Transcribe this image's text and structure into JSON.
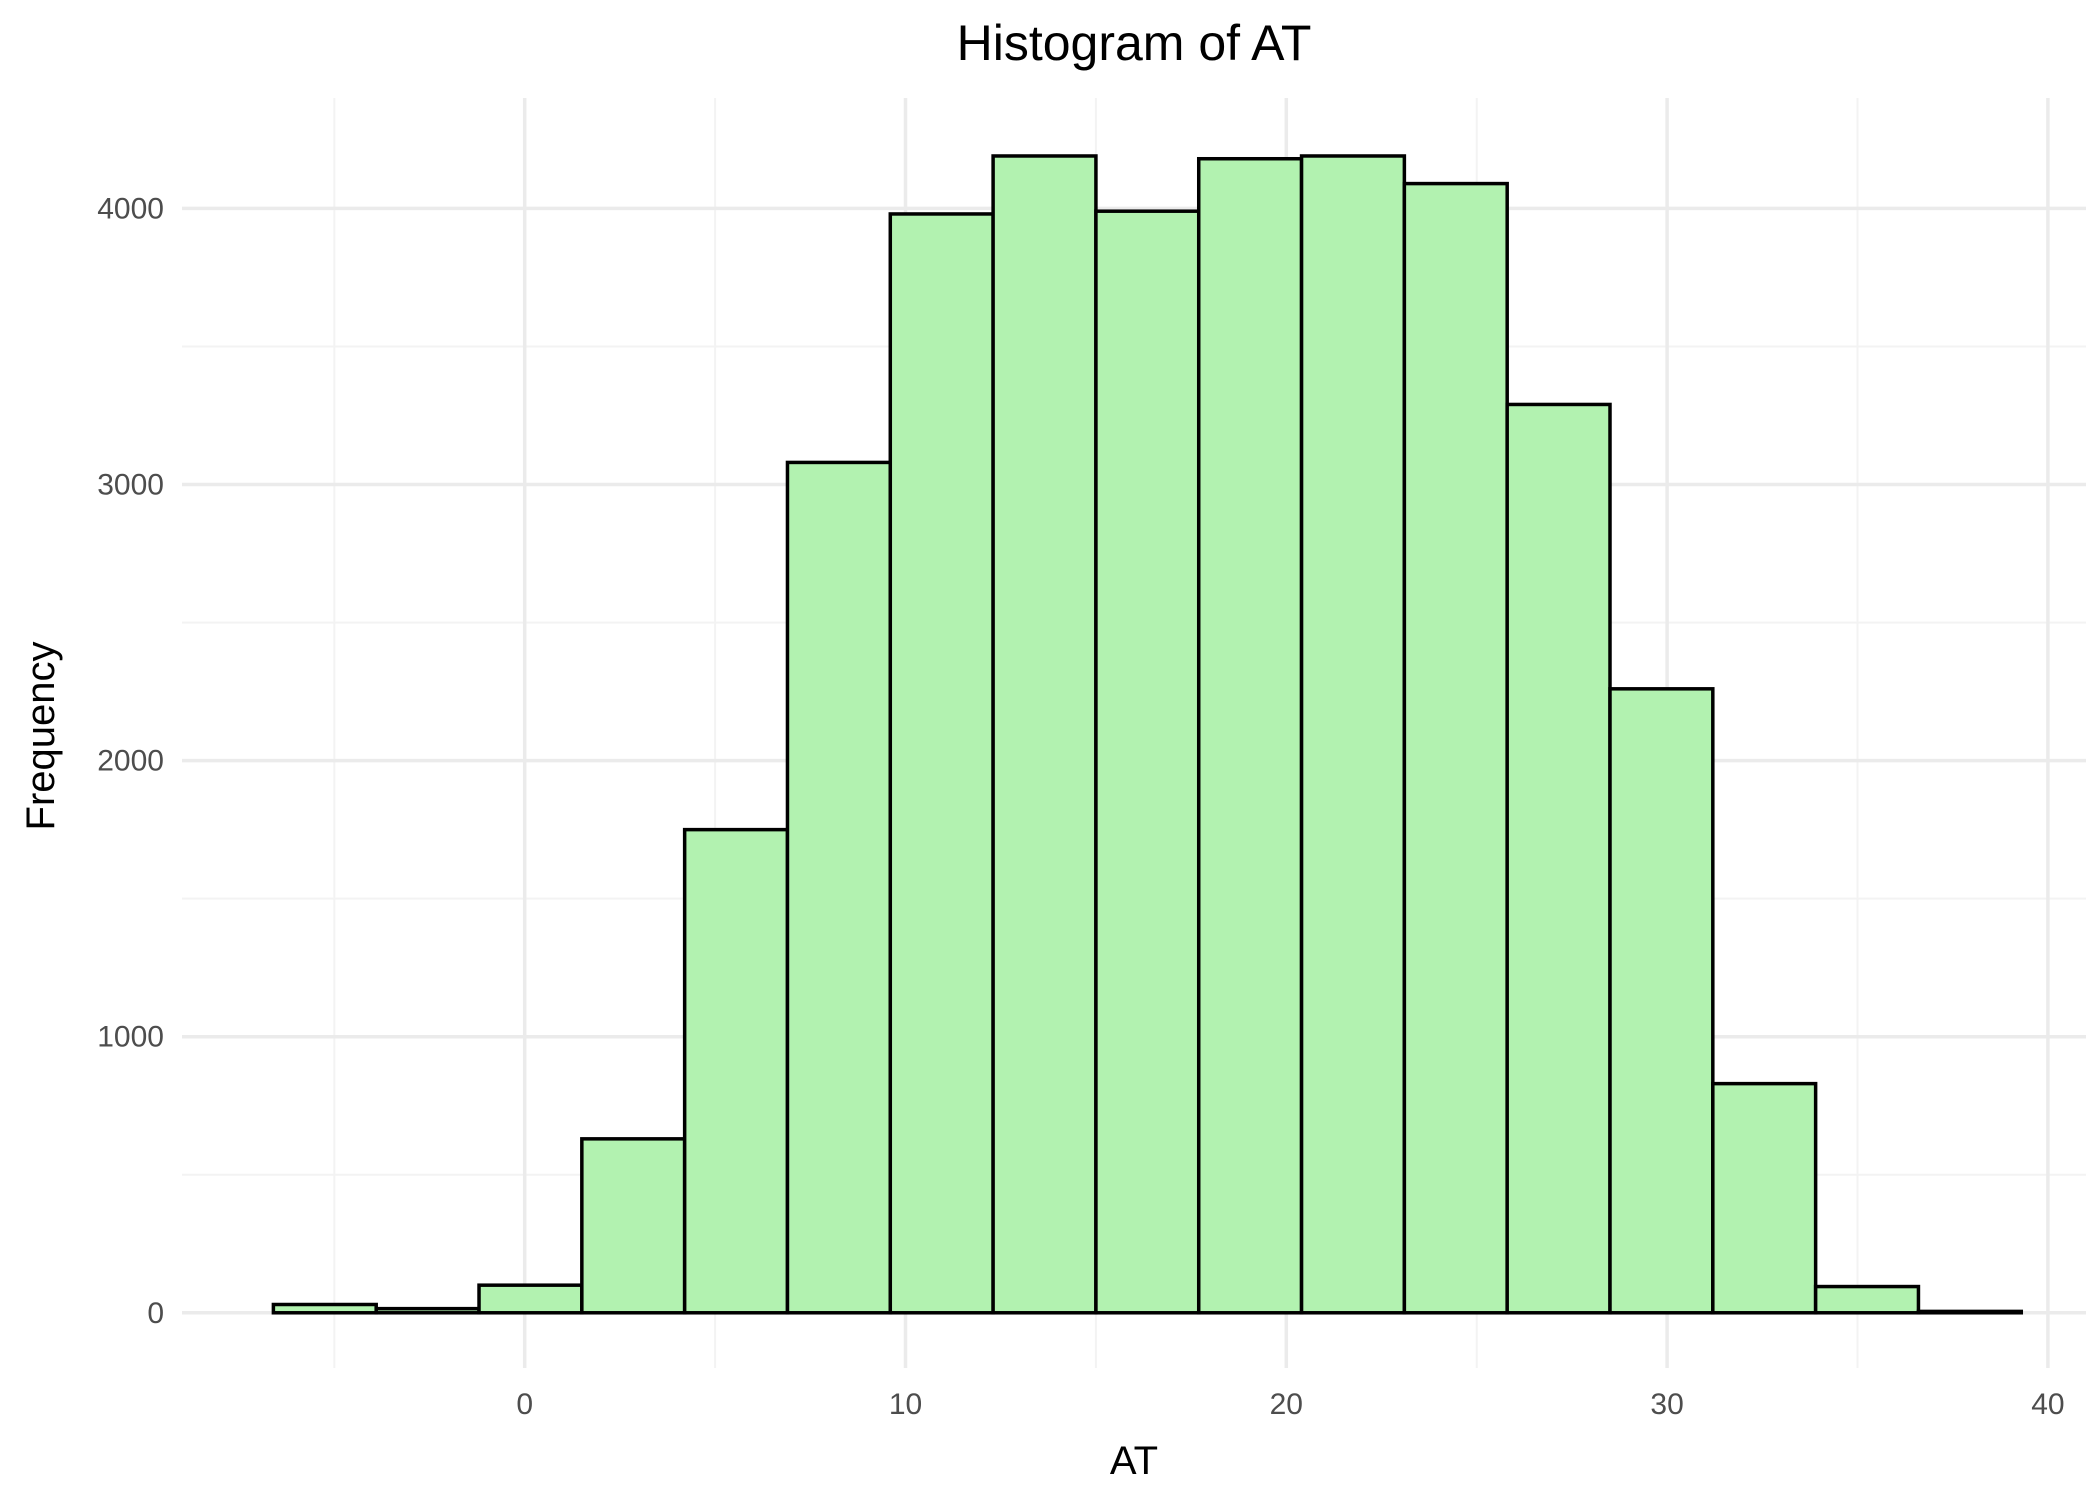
{
  "chart_data": {
    "type": "bar",
    "title": "Histogram of AT",
    "xlabel": "AT",
    "ylabel": "Frequency",
    "x_ticks": [
      0,
      10,
      20,
      30,
      40
    ],
    "y_ticks": [
      0,
      1000,
      2000,
      3000,
      4000
    ],
    "xlim": [
      -9,
      41
    ],
    "ylim": [
      -200,
      4400
    ],
    "grid": true,
    "legend": "none",
    "bin_edges": [
      -6.6,
      -3.9,
      -1.2,
      1.5,
      4.2,
      6.9,
      9.6,
      12.3,
      15.0,
      17.7,
      20.4,
      23.1,
      25.8,
      28.5,
      31.2,
      33.9,
      36.6,
      39.3
    ],
    "values": [
      30,
      15,
      100,
      630,
      1750,
      3080,
      3980,
      4190,
      3990,
      4180,
      4190,
      4090,
      3290,
      2260,
      830,
      95,
      5
    ],
    "colors": {
      "bar_fill": "#b2f2b0",
      "bar_stroke": "#000000",
      "grid_major": "#ebebeb",
      "grid_minor": "#f3f3f3",
      "background": "#ffffff"
    }
  }
}
